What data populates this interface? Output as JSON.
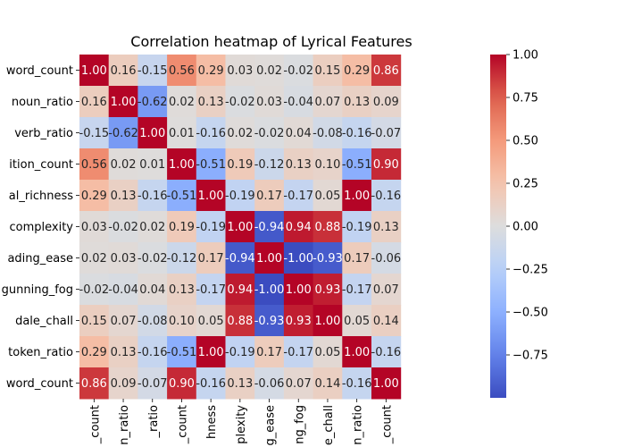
{
  "chart_data": {
    "type": "heatmap",
    "title": "Correlation heatmap of Lyrical Features",
    "row_labels": [
      "word_count",
      "noun_ratio",
      "verb_ratio",
      "ition_count",
      "al_richness",
      "complexity",
      "ading_ease",
      "gunning_fog",
      "dale_chall",
      "token_ratio",
      "word_count"
    ],
    "col_labels": [
      "_count",
      "n_ratio",
      "_ratio",
      "_count",
      "hness",
      "plexity",
      "g_ease",
      "ng_fog",
      "e_chall",
      "n_ratio",
      "_count"
    ],
    "values": [
      [
        1.0,
        0.16,
        -0.15,
        0.56,
        0.29,
        0.03,
        0.02,
        -0.02,
        0.15,
        0.29,
        0.86
      ],
      [
        0.16,
        1.0,
        -0.62,
        0.02,
        0.13,
        -0.02,
        0.03,
        -0.04,
        0.07,
        0.13,
        0.09
      ],
      [
        -0.15,
        -0.62,
        1.0,
        0.01,
        -0.16,
        0.02,
        -0.02,
        0.04,
        -0.08,
        -0.16,
        -0.07
      ],
      [
        0.56,
        0.02,
        0.01,
        1.0,
        -0.51,
        0.19,
        -0.12,
        0.13,
        0.1,
        -0.51,
        0.9
      ],
      [
        0.29,
        0.13,
        -0.16,
        -0.51,
        1.0,
        -0.19,
        0.17,
        -0.17,
        0.05,
        1.0,
        -0.16
      ],
      [
        0.03,
        -0.02,
        0.02,
        0.19,
        -0.19,
        1.0,
        -0.94,
        0.94,
        0.88,
        -0.19,
        0.13
      ],
      [
        0.02,
        0.03,
        -0.02,
        -0.12,
        0.17,
        -0.94,
        1.0,
        -1.0,
        -0.93,
        0.17,
        -0.06
      ],
      [
        -0.02,
        -0.04,
        0.04,
        0.13,
        -0.17,
        0.94,
        -1.0,
        1.0,
        0.93,
        -0.17,
        0.07
      ],
      [
        0.15,
        0.07,
        -0.08,
        0.1,
        0.05,
        0.88,
        -0.93,
        0.93,
        1.0,
        0.05,
        0.14
      ],
      [
        0.29,
        0.13,
        -0.16,
        -0.51,
        1.0,
        -0.19,
        0.17,
        -0.17,
        0.05,
        1.0,
        -0.16
      ],
      [
        0.86,
        0.09,
        -0.07,
        0.9,
        -0.16,
        0.13,
        -0.06,
        0.07,
        0.14,
        -0.16,
        1.0
      ]
    ],
    "colormap": "coolwarm",
    "vmin": -1.0,
    "vmax": 1.0,
    "colorbar_ticks": [
      "1.00",
      "0.75",
      "0.50",
      "0.25",
      "0.00",
      "−0.25",
      "−0.50",
      "−0.75"
    ],
    "colorbar_tick_values": [
      1.0,
      0.75,
      0.5,
      0.25,
      0.0,
      -0.25,
      -0.5,
      -0.75
    ],
    "annotations": true
  }
}
